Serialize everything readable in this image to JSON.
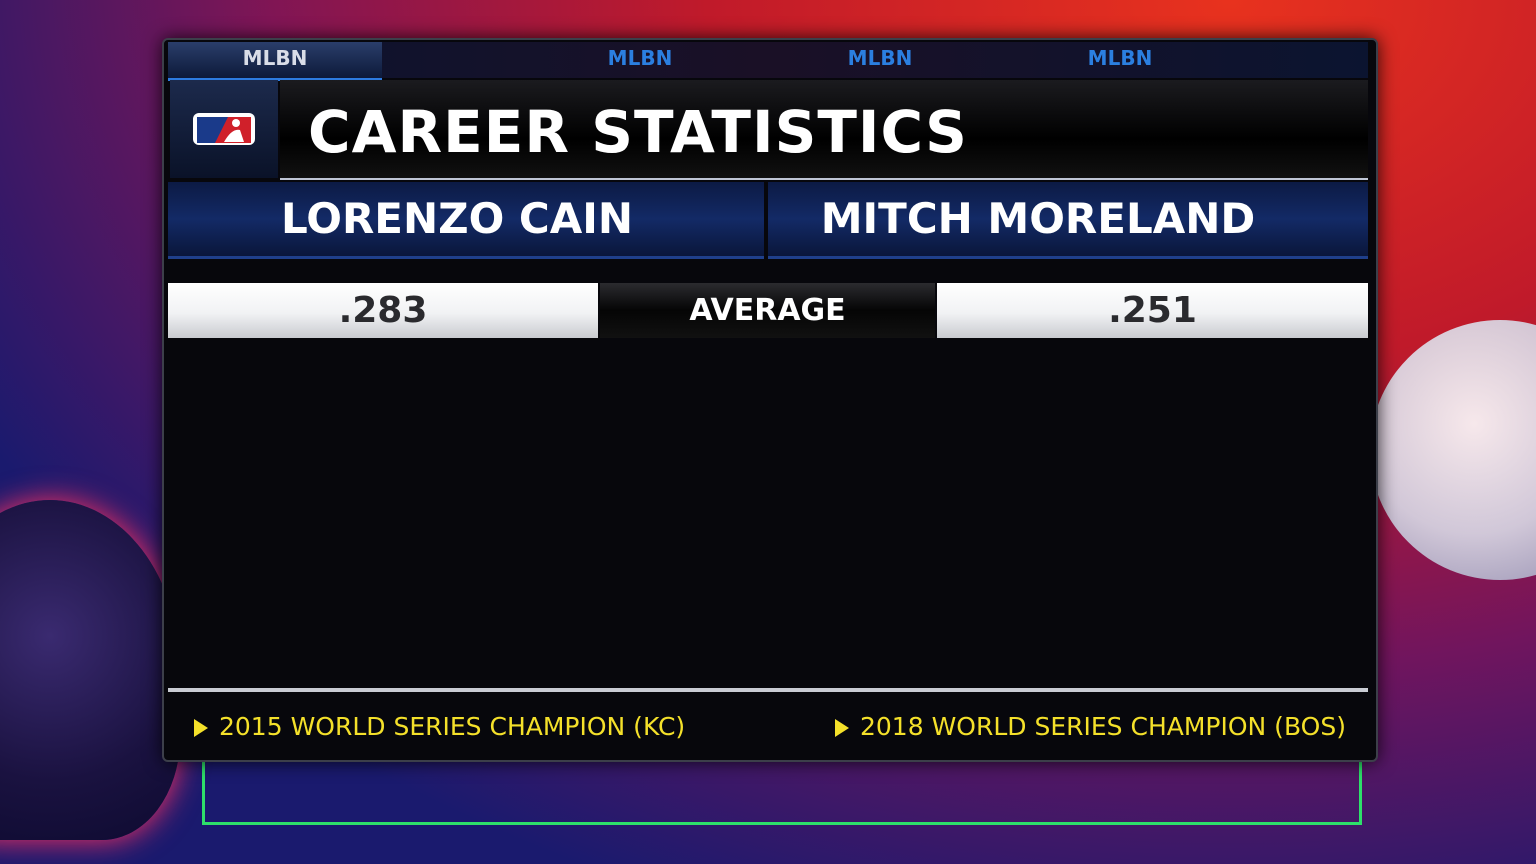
{
  "tabs": [
    "MLBN",
    "MLBN",
    "MLBN",
    "MLBN"
  ],
  "title": "CAREER STATISTICS",
  "players": [
    "LORENZO CAIN",
    "MITCH MORELAND"
  ],
  "table": {
    "rows": [
      [
        ".283",
        "AVERAGE",
        ".251"
      ]
    ]
  },
  "notes": [
    "2015 WORLD SERIES CHAMPION (KC)",
    "2018 WORLD SERIES CHAMPION (BOS)"
  ]
}
